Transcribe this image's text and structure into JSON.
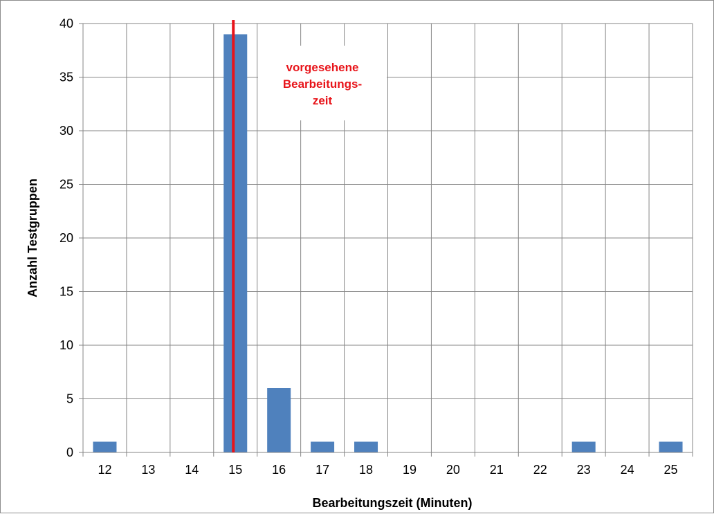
{
  "chart_data": {
    "type": "bar",
    "categories": [
      "12",
      "13",
      "14",
      "15",
      "16",
      "17",
      "18",
      "19",
      "20",
      "21",
      "22",
      "23",
      "24",
      "25"
    ],
    "x": [
      12,
      13,
      14,
      15,
      16,
      17,
      18,
      19,
      20,
      21,
      22,
      23,
      24,
      25
    ],
    "values": [
      1,
      0,
      0,
      39,
      6,
      1,
      1,
      0,
      0,
      0,
      0,
      1,
      0,
      1
    ],
    "xlabel": "Bearbeitungszeit (Minuten)",
    "ylabel": "Anzahl Testgruppen",
    "ylim": [
      0,
      40
    ],
    "yticks": [
      0,
      5,
      10,
      15,
      20,
      25,
      30,
      35,
      40
    ],
    "grid": true,
    "bar_color": "#4f81bd",
    "reference_line": {
      "x": 15,
      "color": "#e8141a"
    },
    "annotation": [
      "vorgesehene",
      "Bearbeitungs-",
      "zeit"
    ]
  }
}
